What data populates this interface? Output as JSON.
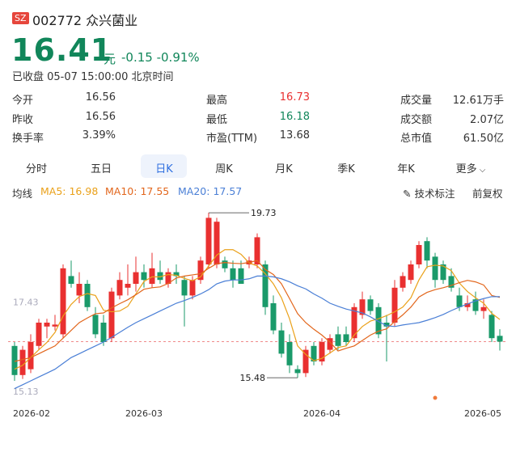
{
  "header": {
    "market": "SZ",
    "code": "002772",
    "name": "众兴菌业",
    "price": 16.41,
    "unit": "元",
    "change": -0.15,
    "change_pct": "-0.91%",
    "status": "已收盘 05-07 15:00:00 北京时间"
  },
  "stats": [
    [
      [
        "今开",
        16.56
      ],
      [
        "最高",
        16.73
      ],
      [
        "成交量",
        "12.61万手"
      ]
    ],
    [
      [
        "昨收",
        16.56
      ],
      [
        "最低",
        16.18
      ],
      [
        "成交额",
        "2.07亿"
      ]
    ],
    [
      [
        "换手率",
        "3.39%"
      ],
      [
        "市盈(TTM)",
        13.68
      ],
      [
        "总市值",
        "61.50亿"
      ]
    ]
  ],
  "tabs": {
    "items": [
      "分时",
      "五日",
      "日K",
      "周K",
      "月K",
      "季K",
      "年K",
      "更多"
    ],
    "active": 2
  },
  "ma_legend_label": "均线",
  "tools": [
    "技术标注",
    "前复权"
  ],
  "chart_data": {
    "type": "candlestick",
    "categories": [
      "2026-02",
      null,
      null,
      null,
      null,
      null,
      null,
      null,
      null,
      null,
      null,
      null,
      null,
      null,
      null,
      null,
      "2026-03",
      null,
      null,
      null,
      null,
      null,
      null,
      null,
      null,
      null,
      null,
      null,
      null,
      null,
      null,
      null,
      null,
      null,
      null,
      null,
      null,
      null,
      "2026-04",
      null,
      null,
      null,
      null,
      null,
      null,
      null,
      null,
      null,
      null,
      null,
      null,
      null,
      null,
      null,
      null,
      null,
      null,
      null,
      null,
      null,
      "2026-05"
    ],
    "open": [
      16.3,
      15.55,
      15.7,
      16.3,
      16.8,
      16.8,
      16.6,
      18.1,
      17.6,
      17.9,
      17.1,
      16.9,
      16.5,
      17.6,
      17.8,
      17.9,
      18.2,
      17.9,
      18.2,
      17.9,
      18.2,
      18.0,
      17.6,
      18.0,
      18.4,
      18.4,
      18.5,
      18.3,
      18.3,
      18.4,
      18.4,
      18.4,
      17.4,
      16.7,
      16.4,
      15.7,
      15.6,
      16.3,
      15.9,
      16.2,
      16.6,
      16.6,
      16.5,
      17.1,
      17.5,
      17.3,
      16.9,
      16.9,
      17.8,
      18.0,
      18.4,
      19.0,
      18.6,
      18.4,
      18.1,
      17.6,
      17.3,
      17.5,
      17.2,
      17.1,
      16.56
    ],
    "high": [
      16.4,
      16.3,
      16.6,
      17.0,
      17.0,
      17.1,
      18.4,
      18.5,
      18.2,
      18.0,
      17.3,
      17.1,
      17.8,
      18.2,
      18.4,
      18.6,
      18.4,
      18.7,
      18.5,
      18.3,
      18.4,
      18.1,
      18.1,
      18.6,
      19.73,
      19.6,
      18.6,
      18.5,
      18.5,
      18.6,
      19.2,
      18.5,
      17.6,
      16.9,
      16.6,
      15.8,
      16.3,
      16.4,
      16.5,
      16.6,
      16.8,
      16.8,
      17.4,
      17.7,
      17.6,
      17.4,
      17.1,
      18.0,
      18.2,
      18.5,
      19.0,
      19.1,
      18.7,
      18.5,
      18.3,
      17.8,
      17.6,
      17.7,
      17.5,
      17.2,
      16.73
    ],
    "low": [
      15.4,
      15.45,
      15.6,
      16.2,
      16.5,
      16.7,
      16.5,
      17.8,
      17.4,
      17.2,
      16.5,
      16.3,
      16.4,
      17.5,
      17.6,
      17.7,
      17.8,
      17.8,
      17.9,
      17.8,
      17.9,
      16.8,
      17.5,
      17.9,
      18.3,
      18.3,
      18.2,
      17.8,
      17.9,
      18.3,
      18.3,
      17.1,
      16.6,
      16.0,
      15.6,
      15.48,
      15.5,
      15.8,
      15.8,
      16.1,
      16.2,
      16.3,
      16.4,
      17.0,
      17.1,
      16.5,
      15.9,
      16.8,
      17.7,
      17.9,
      18.3,
      18.3,
      17.8,
      17.9,
      17.7,
      17.2,
      17.2,
      17.1,
      17.0,
      16.4,
      16.18
    ],
    "close": [
      15.55,
      16.2,
      16.4,
      16.9,
      16.9,
      16.85,
      18.3,
      17.9,
      17.9,
      17.3,
      16.6,
      16.4,
      17.7,
      18.0,
      17.9,
      18.2,
      18.0,
      18.3,
      18.0,
      18.2,
      18.1,
      17.6,
      18.0,
      18.5,
      19.6,
      19.5,
      18.3,
      18.0,
      17.9,
      18.5,
      19.1,
      17.3,
      16.7,
      16.1,
      15.8,
      15.6,
      16.2,
      15.9,
      16.4,
      16.5,
      16.3,
      16.4,
      17.3,
      17.5,
      17.2,
      16.6,
      16.8,
      17.8,
      18.1,
      18.4,
      18.9,
      18.5,
      18.0,
      18.0,
      17.8,
      17.3,
      17.4,
      17.2,
      17.3,
      16.5,
      16.41
    ],
    "up_color": "#e93030",
    "down_color": "#1a9a6a",
    "series": [
      {
        "name": "MA5",
        "color": "#eaa11a",
        "label_value": 16.98,
        "values": [
          15.7,
          15.8,
          16.0,
          16.2,
          16.39,
          16.65,
          17.07,
          17.37,
          17.57,
          17.65,
          17.6,
          17.22,
          17.18,
          17.2,
          17.32,
          17.64,
          17.96,
          18.08,
          18.08,
          18.14,
          18.12,
          18.04,
          17.98,
          18.08,
          18.36,
          18.64,
          18.78,
          18.78,
          18.66,
          18.44,
          18.36,
          18.16,
          17.9,
          17.54,
          17.0,
          16.3,
          16.08,
          15.92,
          15.98,
          16.12,
          16.26,
          16.3,
          16.58,
          16.8,
          16.94,
          17.0,
          17.08,
          17.18,
          17.3,
          17.54,
          18.0,
          18.34,
          18.38,
          18.36,
          18.24,
          17.92,
          17.7,
          17.54,
          17.4,
          17.14,
          16.98
        ]
      },
      {
        "name": "MA10",
        "color": "#e2661c",
        "label_value": 17.55,
        "values": [
          15.9,
          15.95,
          16.0,
          16.1,
          16.2,
          16.3,
          16.5,
          16.7,
          16.9,
          17.02,
          17.13,
          17.15,
          17.28,
          17.39,
          17.49,
          17.62,
          17.76,
          17.8,
          17.82,
          17.91,
          18.05,
          18.1,
          18.13,
          18.16,
          18.3,
          18.42,
          18.45,
          18.43,
          18.42,
          18.45,
          18.5,
          18.27,
          18.14,
          17.9,
          17.52,
          17.13,
          16.9,
          16.73,
          16.58,
          16.4,
          16.17,
          16.24,
          16.3,
          16.44,
          16.58,
          16.68,
          16.74,
          16.93,
          17.1,
          17.3,
          17.56,
          17.68,
          17.75,
          17.8,
          17.86,
          17.93,
          17.99,
          17.95,
          17.87,
          17.6,
          17.55
        ]
      },
      {
        "name": "MA20",
        "color": "#4a7fd6",
        "label_value": 17.57,
        "values": [
          15.2,
          15.3,
          15.4,
          15.5,
          15.6,
          15.7,
          15.85,
          16.0,
          16.1,
          16.2,
          16.3,
          16.4,
          16.52,
          16.65,
          16.78,
          16.9,
          17.0,
          17.1,
          17.2,
          17.3,
          17.4,
          17.47,
          17.55,
          17.64,
          17.75,
          17.9,
          17.97,
          18.0,
          18.0,
          18.03,
          18.1,
          18.1,
          18.08,
          18.03,
          17.95,
          17.85,
          17.77,
          17.64,
          17.53,
          17.4,
          17.32,
          17.25,
          17.2,
          17.15,
          17.05,
          16.93,
          16.82,
          16.8,
          16.84,
          16.87,
          16.9,
          16.96,
          17.03,
          17.11,
          17.21,
          17.3,
          17.38,
          17.46,
          17.52,
          17.57,
          17.57
        ]
      }
    ],
    "ylim": [
      14.9,
      19.9
    ],
    "yticks": [
      15.13,
      17.43
    ],
    "annotations": [
      {
        "text": "19.73",
        "index": 24,
        "value": 19.73
      },
      {
        "text": "15.48",
        "index": 35,
        "value": 15.48
      }
    ]
  }
}
